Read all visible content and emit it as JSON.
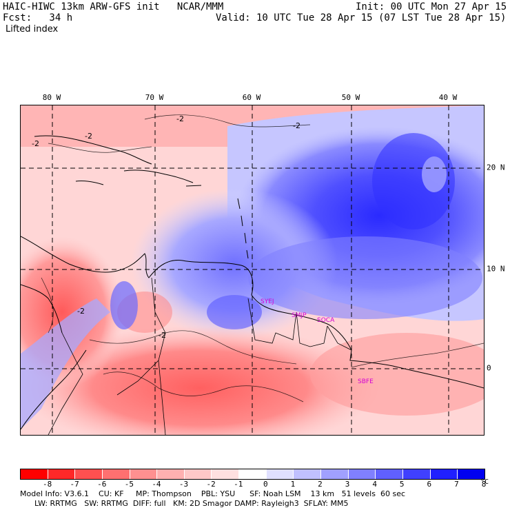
{
  "header": {
    "model_line": "HAIC-HIWC 13km ARW-GFS init   NCAR/MMM",
    "init_line": "Init: 00 UTC Mon 27 Apr 15",
    "fcst_line": "Fcst:   34 h",
    "valid_line": "Valid: 10 UTC Tue 28 Apr 15 (07 LST Tue 28 Apr 15)",
    "field_name": "Lifted index"
  },
  "map": {
    "lon_labels": [
      "80 W",
      "70 W",
      "60 W",
      "50 W",
      "40 W"
    ],
    "lat_labels": [
      "20 N",
      "10 N",
      "0"
    ],
    "contour_labels": [
      "-2",
      "-2",
      "-2",
      "-2",
      "-2",
      "-2"
    ],
    "stations": [
      "SYEJ",
      "SMJP",
      "SOCA",
      "SBFE"
    ]
  },
  "colorbar": {
    "colors": [
      "#ff0000",
      "#ff2828",
      "#ff5050",
      "#ff7070",
      "#ff9090",
      "#ffb0b0",
      "#ffc8c8",
      "#ffe0e0",
      "#ffffff",
      "#e0e0ff",
      "#c0c0ff",
      "#a0a0ff",
      "#8080ff",
      "#6060ff",
      "#4040ff",
      "#2020ff",
      "#0000f0"
    ],
    "tick_labels": [
      "-8",
      "-7",
      "-6",
      "-5",
      "-4",
      "-3",
      "-2",
      "-1",
      "0",
      "1",
      "2",
      "3",
      "4",
      "5",
      "6",
      "7",
      "8"
    ],
    "unit": "°C"
  },
  "footer": {
    "line1": "Model Info: V3.6.1    CU: KF     MP: Thompson    PBL: YSU      SF: Noah LSM    13 km   51 levels  60 sec",
    "line2": "      LW: RRTMG   SW: RRTMG  DIFF: full   KM: 2D Smagor DAMP: Rayleigh3  SFLAY: MM5"
  }
}
